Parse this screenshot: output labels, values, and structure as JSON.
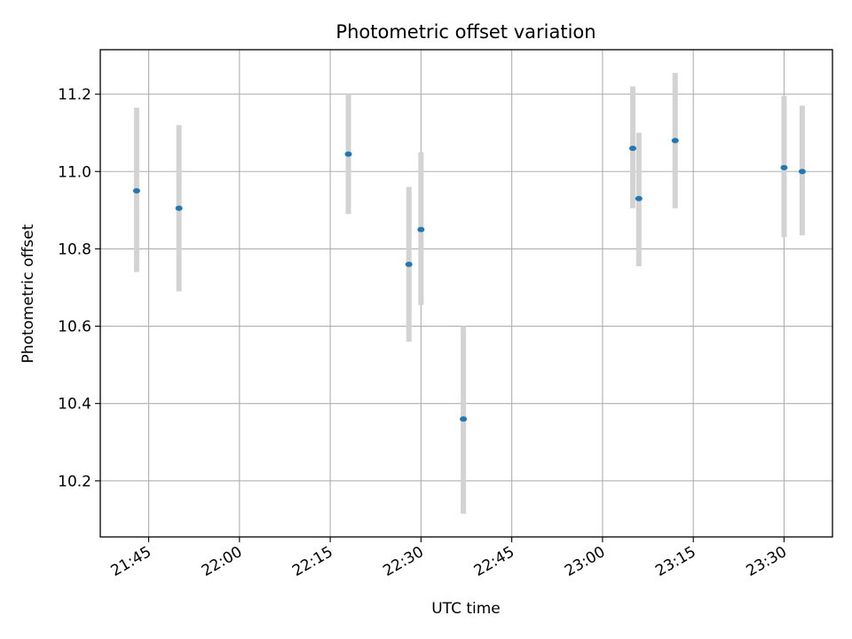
{
  "chart_data": {
    "type": "scatter",
    "title": "Photometric offset variation",
    "xlabel": "UTC time",
    "ylabel": "Photometric offset",
    "x_ticks": [
      "21:45",
      "22:00",
      "22:15",
      "22:30",
      "22:45",
      "23:00",
      "23:15",
      "23:30"
    ],
    "y_ticks": [
      "10.2",
      "10.4",
      "10.6",
      "10.8",
      "11.0",
      "11.2"
    ],
    "xlim": [
      "21:37",
      "23:38"
    ],
    "ylim": [
      10.055,
      11.315
    ],
    "grid": true,
    "marker_color": "#1f77b4",
    "errorbar_color": "#d3d3d3",
    "points": [
      {
        "x": "21:43",
        "y": 10.95,
        "err_low": 10.74,
        "err_high": 11.165
      },
      {
        "x": "21:50",
        "y": 10.905,
        "err_low": 10.69,
        "err_high": 11.12
      },
      {
        "x": "22:18",
        "y": 11.045,
        "err_low": 10.89,
        "err_high": 11.2
      },
      {
        "x": "22:28",
        "y": 10.76,
        "err_low": 10.56,
        "err_high": 10.96
      },
      {
        "x": "22:30",
        "y": 10.85,
        "err_low": 10.655,
        "err_high": 11.05
      },
      {
        "x": "22:37",
        "y": 10.36,
        "err_low": 10.115,
        "err_high": 10.6
      },
      {
        "x": "23:05",
        "y": 11.06,
        "err_low": 10.905,
        "err_high": 11.22
      },
      {
        "x": "23:06",
        "y": 10.93,
        "err_low": 10.755,
        "err_high": 11.1
      },
      {
        "x": "23:12",
        "y": 11.08,
        "err_low": 10.905,
        "err_high": 11.255
      },
      {
        "x": "23:30",
        "y": 11.01,
        "err_low": 10.83,
        "err_high": 11.195
      },
      {
        "x": "23:33",
        "y": 11.0,
        "err_low": 10.835,
        "err_high": 11.17
      }
    ]
  }
}
